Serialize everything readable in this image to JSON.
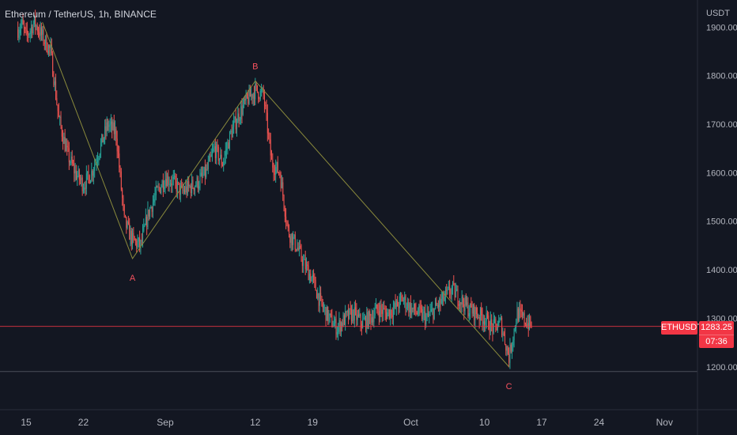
{
  "header": {
    "title": "Ethereum / TetherUS, 1h, BINANCE"
  },
  "price_axis": {
    "currency": "USDT"
  },
  "current": {
    "symbol": "ETHUSDT",
    "price_label": "1283.25",
    "countdown": "07:36"
  },
  "colors": {
    "background": "#131722",
    "up": "#26a69a",
    "down": "#ef5350",
    "wave_line": "#8a8a3c",
    "wave_label": "#f7525f",
    "price_line": "#f23645"
  },
  "chart_data": {
    "type": "candlestick",
    "title": "Ethereum / TetherUS, 1h, BINANCE",
    "ylabel": "USDT",
    "ylim": [
      1175,
      1925
    ],
    "y_ticks": [
      1200,
      1300,
      1400,
      1500,
      1600,
      1700,
      1800,
      1900
    ],
    "y_tick_labels": [
      "1200.00",
      "1300.00",
      "1400.00",
      "1500.00",
      "1600.00",
      "1700.00",
      "1800.00",
      "1900.00"
    ],
    "x_ticks": [
      {
        "date": "2022-08-15",
        "label": "15"
      },
      {
        "date": "2022-08-22",
        "label": "22"
      },
      {
        "date": "2022-09-01",
        "label": "Sep"
      },
      {
        "date": "2022-09-12",
        "label": "12"
      },
      {
        "date": "2022-09-19",
        "label": "19"
      },
      {
        "date": "2022-10-01",
        "label": "Oct"
      },
      {
        "date": "2022-10-10",
        "label": "10"
      },
      {
        "date": "2022-10-17",
        "label": "17"
      },
      {
        "date": "2022-10-24",
        "label": "24"
      },
      {
        "date": "2022-11-01",
        "label": "Nov"
      }
    ],
    "price_path": [
      [
        "2022-08-14",
        1895
      ],
      [
        "2022-08-14T12",
        1905
      ],
      [
        "2022-08-15",
        1880
      ],
      [
        "2022-08-16",
        1910
      ],
      [
        "2022-08-17",
        1880
      ],
      [
        "2022-08-18",
        1850
      ],
      [
        "2022-08-19",
        1710
      ],
      [
        "2022-08-20",
        1640
      ],
      [
        "2022-08-21",
        1600
      ],
      [
        "2022-08-22",
        1575
      ],
      [
        "2022-08-23",
        1600
      ],
      [
        "2022-08-24",
        1650
      ],
      [
        "2022-08-25",
        1700
      ],
      [
        "2022-08-26",
        1680
      ],
      [
        "2022-08-27",
        1500
      ],
      [
        "2022-08-28",
        1460
      ],
      [
        "2022-08-29",
        1450
      ],
      [
        "2022-08-30",
        1520
      ],
      [
        "2022-08-31",
        1560
      ],
      [
        "2022-09-01",
        1590
      ],
      [
        "2022-09-02",
        1580
      ],
      [
        "2022-09-03",
        1560
      ],
      [
        "2022-09-04",
        1570
      ],
      [
        "2022-09-05",
        1580
      ],
      [
        "2022-09-06",
        1600
      ],
      [
        "2022-09-07",
        1650
      ],
      [
        "2022-09-08",
        1620
      ],
      [
        "2022-09-09",
        1680
      ],
      [
        "2022-09-10",
        1720
      ],
      [
        "2022-09-11",
        1750
      ],
      [
        "2022-09-12",
        1770
      ],
      [
        "2022-09-13",
        1760
      ],
      [
        "2022-09-14",
        1620
      ],
      [
        "2022-09-15",
        1600
      ],
      [
        "2022-09-16",
        1480
      ],
      [
        "2022-09-17",
        1450
      ],
      [
        "2022-09-18",
        1410
      ],
      [
        "2022-09-19",
        1380
      ],
      [
        "2022-09-20",
        1330
      ],
      [
        "2022-09-21",
        1300
      ],
      [
        "2022-09-22",
        1280
      ],
      [
        "2022-09-23",
        1300
      ],
      [
        "2022-09-24",
        1310
      ],
      [
        "2022-09-25",
        1290
      ],
      [
        "2022-09-26",
        1300
      ],
      [
        "2022-09-27",
        1320
      ],
      [
        "2022-09-28",
        1310
      ],
      [
        "2022-09-29",
        1320
      ],
      [
        "2022-09-30",
        1340
      ],
      [
        "2022-10-01",
        1320
      ],
      [
        "2022-10-02",
        1310
      ],
      [
        "2022-10-03",
        1300
      ],
      [
        "2022-10-04",
        1320
      ],
      [
        "2022-10-05",
        1340
      ],
      [
        "2022-10-06",
        1360
      ],
      [
        "2022-10-07",
        1340
      ],
      [
        "2022-10-08",
        1320
      ],
      [
        "2022-10-09",
        1310
      ],
      [
        "2022-10-10",
        1300
      ],
      [
        "2022-10-11",
        1280
      ],
      [
        "2022-10-12",
        1290
      ],
      [
        "2022-10-13",
        1220
      ],
      [
        "2022-10-14",
        1310
      ],
      [
        "2022-10-15",
        1295
      ],
      [
        "2022-10-15T18",
        1283.25
      ]
    ],
    "current_price": 1283.25,
    "elliott_wave": {
      "points": [
        {
          "label": "",
          "date": "2022-08-17",
          "price": 1910
        },
        {
          "label": "A",
          "date": "2022-08-28",
          "price": 1423
        },
        {
          "label": "B",
          "date": "2022-09-12",
          "price": 1789
        },
        {
          "label": "C",
          "date": "2022-10-13",
          "price": 1200
        }
      ]
    },
    "horizontal_lines": [
      1283.25,
      1190
    ]
  }
}
